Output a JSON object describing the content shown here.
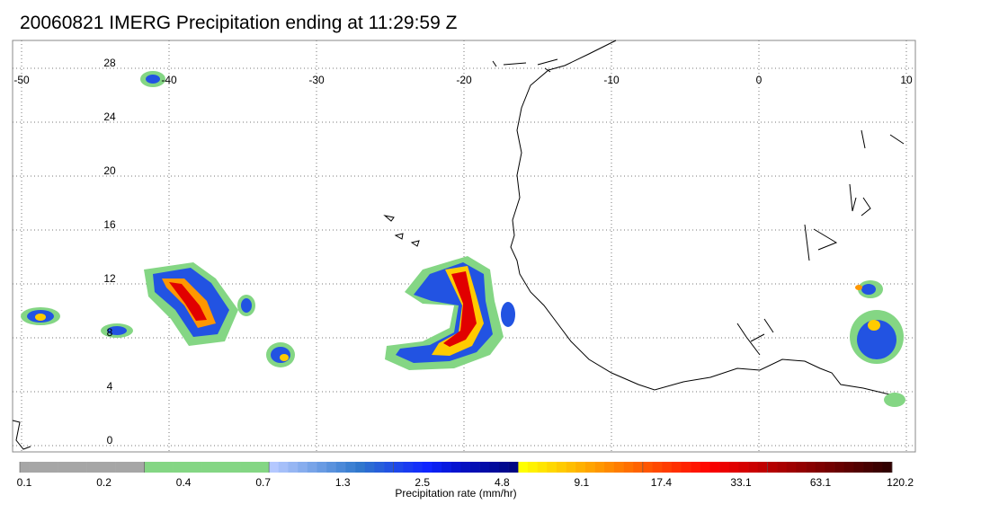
{
  "title": "20060821 IMERG Precipitation ending at 11:29:59 Z",
  "map": {
    "lon_range": [
      -50,
      10
    ],
    "lat_range": [
      -1,
      30
    ],
    "lon_ticks": [
      -50,
      -40,
      -30,
      -20,
      -10,
      0,
      10
    ],
    "lat_ticks": [
      0,
      4,
      8,
      12,
      16,
      20,
      24,
      28
    ],
    "grid": "dotted",
    "coastline_color": "#000000"
  },
  "colorbar": {
    "label": "Precipitation rate (mm/hr)",
    "tick_labels": [
      "0.1",
      "0.2",
      "0.4",
      "0.7",
      "1.3",
      "2.5",
      "4.8",
      "9.1",
      "17.4",
      "33.1",
      "63.1",
      "120.2"
    ],
    "colors": [
      "#a6a6a6",
      "#a6a6a6",
      "#a6a6a6",
      "#a6a6a6",
      "#a6a6a6",
      "#a6a6a6",
      "#a6a6a6",
      "#a6a6a6",
      "#a6a6a6",
      "#a6a6a6",
      "#a6a6a6",
      "#a6a6a6",
      "#a6a6a6",
      "#84d684",
      "#84d684",
      "#84d684",
      "#84d684",
      "#84d684",
      "#84d684",
      "#84d684",
      "#84d684",
      "#84d684",
      "#84d684",
      "#84d684",
      "#84d684",
      "#84d684",
      "#b4c8ff",
      "#a5bff9",
      "#96b6f3",
      "#87adee",
      "#78a4e8",
      "#699be3",
      "#5a92dd",
      "#4b89d8",
      "#3c80d2",
      "#3077cd",
      "#2b6bd3",
      "#275fda",
      "#2253e2",
      "#1d47ea",
      "#193bf1",
      "#1430f9",
      "#0f25ff",
      "#0a1ff0",
      "#0719e0",
      "#0513d0",
      "#0410c0",
      "#030eb4",
      "#020ca8",
      "#010a9c",
      "#00088f",
      "#000683",
      "#ffff00",
      "#fff200",
      "#ffe500",
      "#ffd800",
      "#ffcb00",
      "#ffbe00",
      "#ffb100",
      "#ffa400",
      "#ff9700",
      "#ff8a00",
      "#ff7d00",
      "#ff7000",
      "#ff6300",
      "#ff5600",
      "#ff4900",
      "#ff3c00",
      "#ff2f00",
      "#ff2200",
      "#ff1500",
      "#ff0800",
      "#f70000",
      "#ec0000",
      "#e10000",
      "#d60000",
      "#cb0000",
      "#c00000",
      "#b50000",
      "#aa0000",
      "#9f0000",
      "#940000",
      "#890000",
      "#7e0000",
      "#730000",
      "#680000",
      "#5d0000",
      "#520000",
      "#470000",
      "#3c0000",
      "#310000"
    ]
  },
  "precipitation_systems": [
    {
      "lon": -41.5,
      "lat": 11.5,
      "rate_mm_hr": 33.1
    },
    {
      "lon": -19.5,
      "lat": 10.5,
      "rate_mm_hr": 33.1
    },
    {
      "lon": -48.5,
      "lat": 9.5,
      "rate_mm_hr": 2.5
    },
    {
      "lon": -32.0,
      "lat": 7.2,
      "rate_mm_hr": 4.8
    },
    {
      "lon": 6.5,
      "lat": 8.5,
      "rate_mm_hr": 4.8
    }
  ]
}
